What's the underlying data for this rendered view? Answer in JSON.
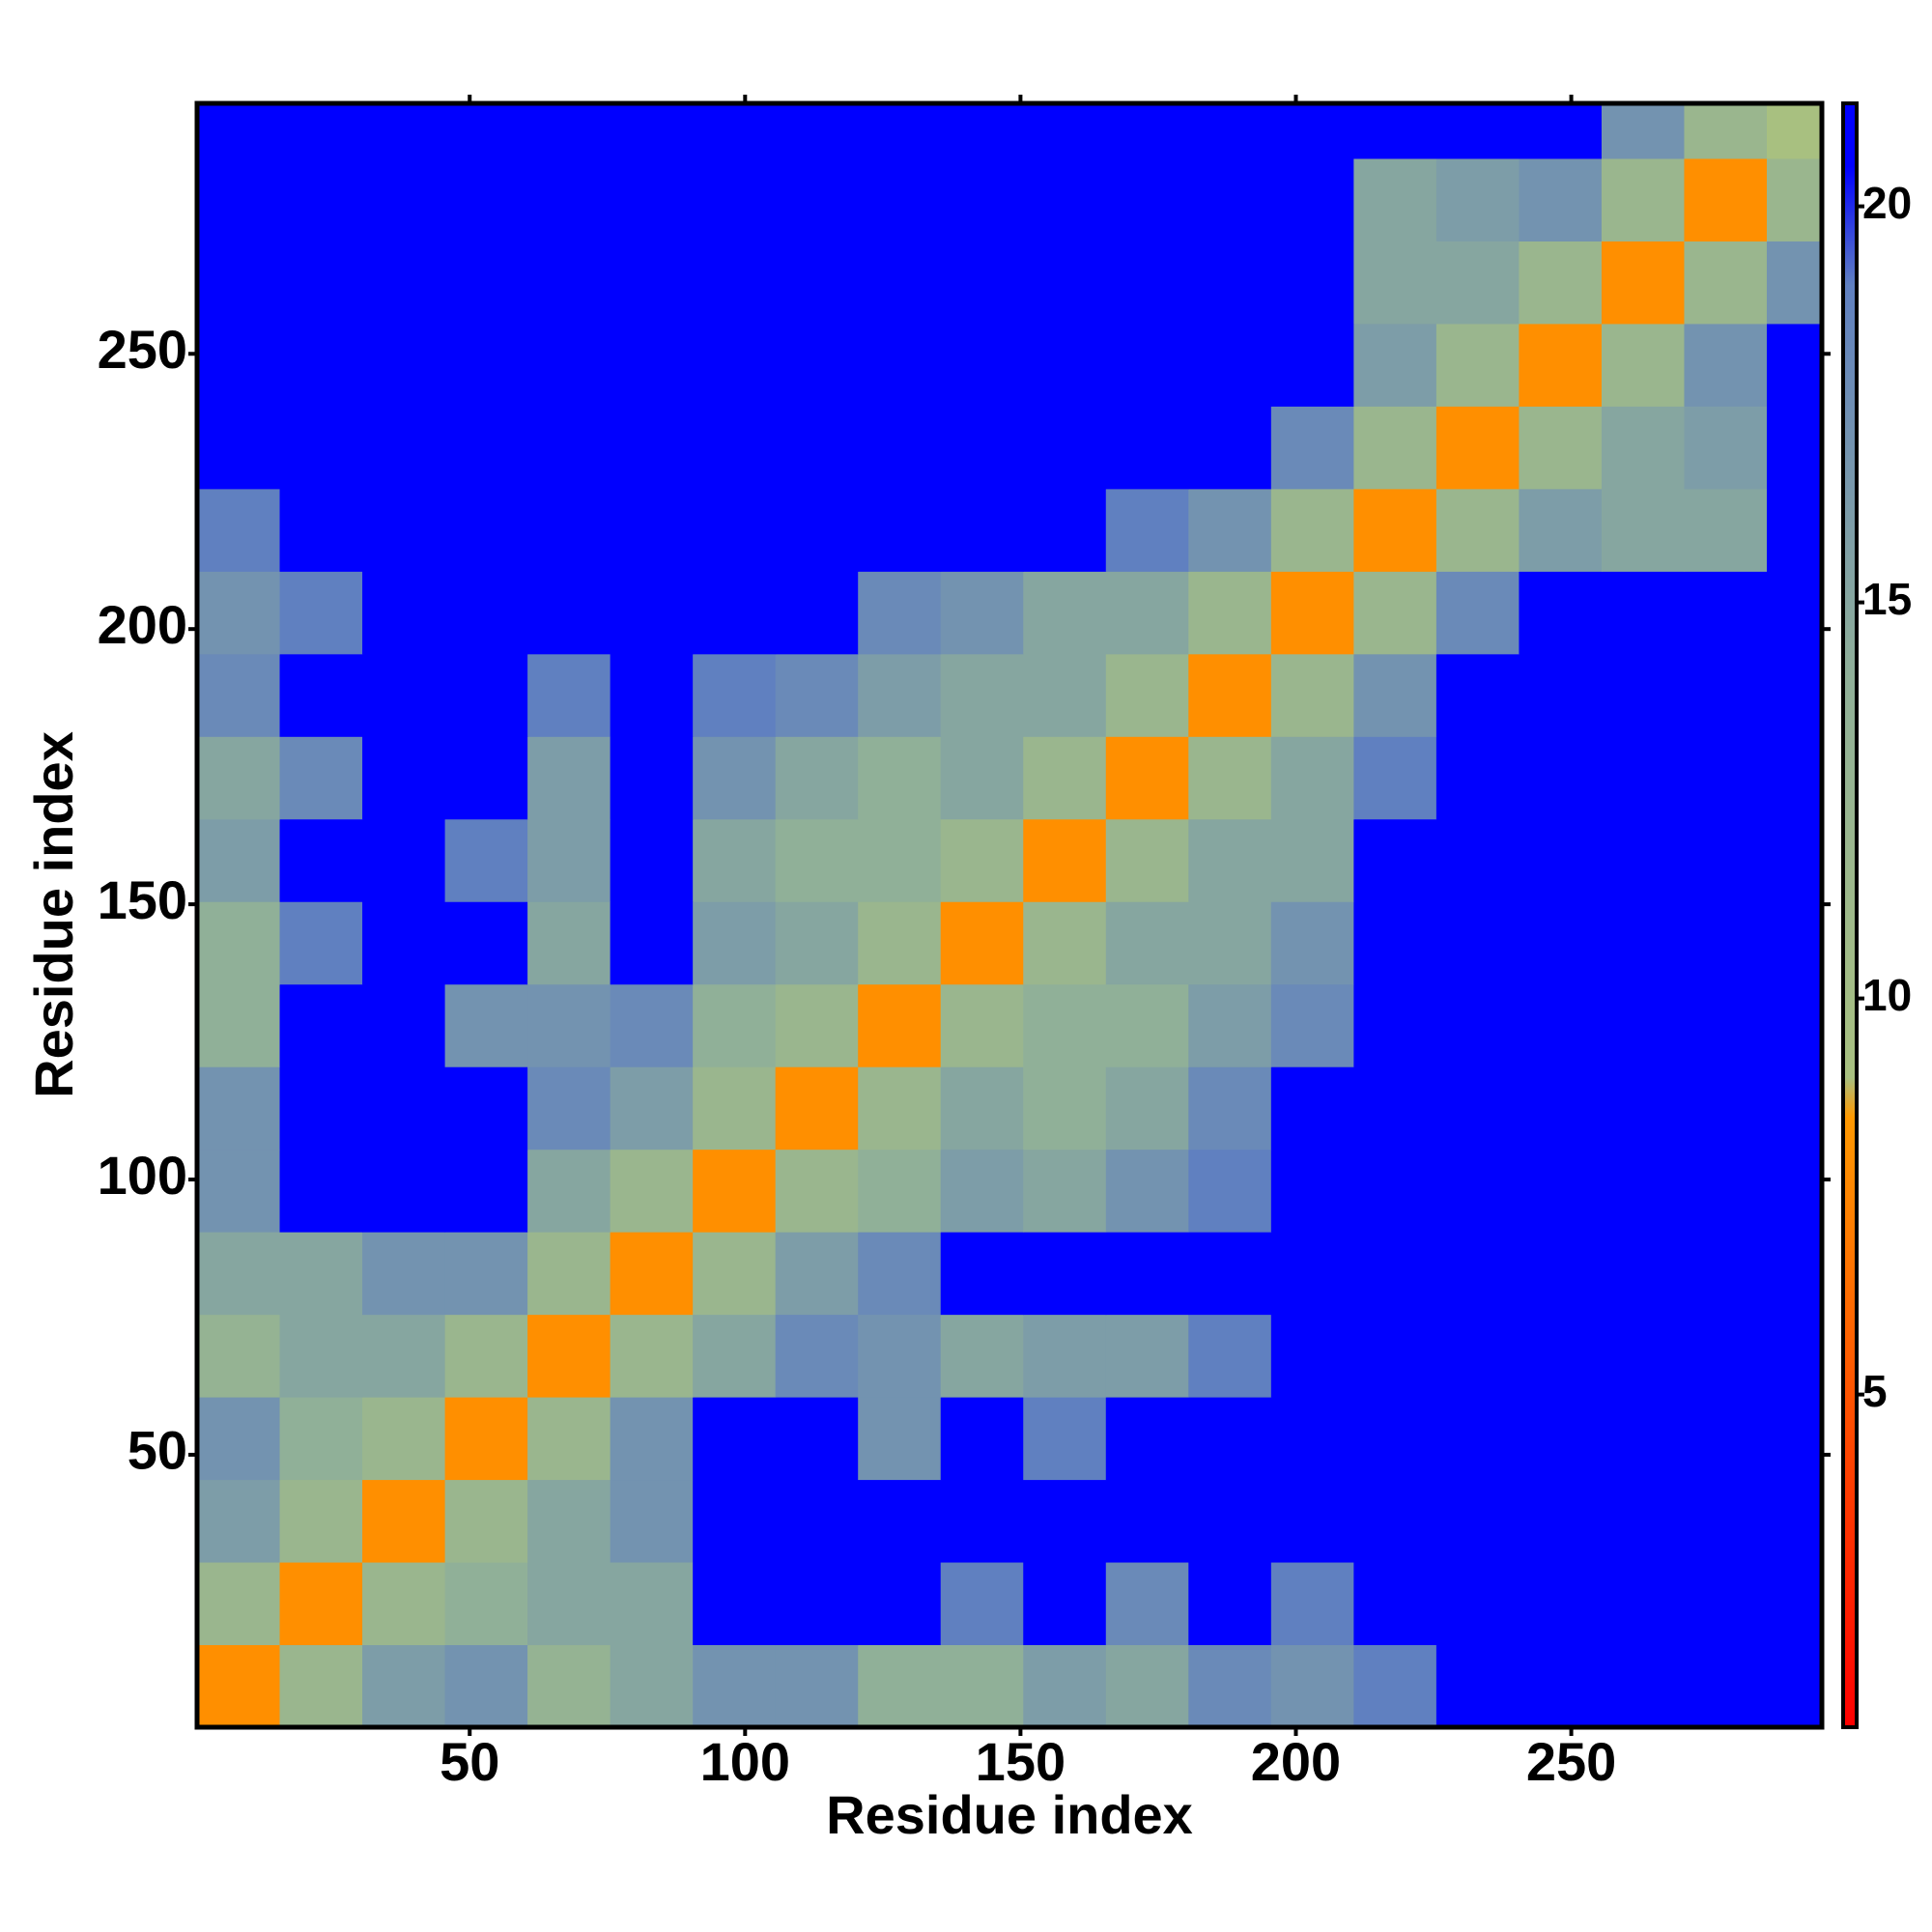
{
  "chart_data": {
    "type": "heatmap",
    "xlabel": "Residue index",
    "ylabel": "Residue index",
    "xlim": [
      0.5,
      295.5
    ],
    "ylim": [
      0.5,
      295.5
    ],
    "xticks": [
      50,
      100,
      150,
      200,
      250
    ],
    "yticks": [
      50,
      100,
      150,
      200,
      250
    ],
    "xbins": [
      0.5,
      15.5,
      30.5,
      45.5,
      60.5,
      75.5,
      90.5,
      105.5,
      120.5,
      135.5,
      150.5,
      165.5,
      180.5,
      195.5,
      210.5,
      225.5,
      240.5,
      255.5,
      270.5,
      285.5,
      295.5
    ],
    "ybins": [
      0.5,
      15.5,
      30.5,
      45.5,
      60.5,
      75.5,
      90.5,
      105.5,
      120.5,
      135.5,
      150.5,
      165.5,
      180.5,
      195.5,
      210.5,
      225.5,
      240.5,
      255.5,
      270.5,
      285.5,
      295.5
    ],
    "zlim": [
      0.8,
      21.3
    ],
    "zticks": [
      5,
      10,
      15,
      20
    ],
    "colorscale": [
      [
        0.8,
        "#ff0000"
      ],
      [
        8.5,
        "#ff9900"
      ],
      [
        9,
        "#a8c080"
      ],
      [
        14,
        "#90b098"
      ],
      [
        19,
        "#6080c0"
      ],
      [
        20.5,
        "#0000ff"
      ],
      [
        21.3,
        "#0000ff"
      ]
    ],
    "z": [
      [
        8,
        12,
        16,
        17,
        13,
        15,
        17,
        17,
        14,
        14,
        16,
        15,
        18,
        17,
        19,
        21,
        21,
        21,
        21,
        21
      ],
      [
        12,
        8,
        12,
        14,
        15,
        15,
        21,
        21,
        21,
        19,
        21,
        18,
        21,
        19,
        21,
        21,
        21,
        21,
        21,
        21
      ],
      [
        16,
        12,
        8,
        12,
        15,
        17,
        21,
        21,
        21,
        21,
        21,
        21,
        21,
        21,
        21,
        21,
        21,
        21,
        21,
        21
      ],
      [
        17,
        14,
        12,
        8,
        12,
        17,
        21,
        21,
        17,
        21,
        19,
        21,
        21,
        21,
        21,
        21,
        21,
        21,
        21,
        21
      ],
      [
        13,
        15,
        15,
        12,
        8,
        12,
        15,
        18,
        17,
        15,
        16,
        16,
        19,
        21,
        21,
        21,
        21,
        21,
        21,
        21
      ],
      [
        15,
        15,
        17,
        17,
        12,
        8,
        12,
        16,
        18,
        21,
        21,
        21,
        21,
        21,
        21,
        21,
        21,
        21,
        21,
        21
      ],
      [
        17,
        21,
        21,
        21,
        15,
        12,
        8,
        12,
        14,
        16,
        15,
        17,
        19,
        21,
        21,
        21,
        21,
        21,
        21,
        21
      ],
      [
        17,
        21,
        21,
        21,
        18,
        16,
        12,
        8,
        12,
        15,
        14,
        15,
        18,
        21,
        21,
        21,
        21,
        21,
        21,
        21
      ],
      [
        14,
        21,
        21,
        17,
        17,
        18,
        14,
        12,
        8,
        12,
        14,
        14,
        16,
        18,
        21,
        21,
        21,
        21,
        21,
        21
      ],
      [
        14,
        19,
        21,
        21,
        15,
        21,
        16,
        15,
        12,
        8,
        12,
        15,
        15,
        17,
        21,
        21,
        21,
        21,
        21,
        21
      ],
      [
        16,
        21,
        21,
        19,
        16,
        21,
        15,
        14,
        14,
        12,
        8,
        12,
        15,
        15,
        21,
        21,
        21,
        21,
        21,
        21
      ],
      [
        15,
        18,
        21,
        21,
        16,
        21,
        17,
        15,
        14,
        15,
        12,
        8,
        12,
        15,
        19,
        21,
        21,
        21,
        21,
        21
      ],
      [
        18,
        21,
        21,
        21,
        19,
        21,
        19,
        18,
        16,
        15,
        15,
        12,
        8,
        12,
        17,
        21,
        21,
        21,
        21,
        21
      ],
      [
        17,
        19,
        21,
        21,
        21,
        21,
        21,
        21,
        18,
        17,
        15,
        15,
        12,
        8,
        12,
        18,
        21,
        21,
        21,
        21
      ],
      [
        19,
        21,
        21,
        21,
        21,
        21,
        21,
        21,
        21,
        21,
        21,
        19,
        17,
        12,
        8,
        12,
        16,
        15,
        15,
        21
      ],
      [
        21,
        21,
        21,
        21,
        21,
        21,
        21,
        21,
        21,
        21,
        21,
        21,
        21,
        18,
        12,
        8,
        12,
        15,
        16,
        21
      ],
      [
        21,
        21,
        21,
        21,
        21,
        21,
        21,
        21,
        21,
        21,
        21,
        21,
        21,
        21,
        16,
        12,
        8,
        12,
        17,
        21
      ],
      [
        21,
        21,
        21,
        21,
        21,
        21,
        21,
        21,
        21,
        21,
        21,
        21,
        21,
        21,
        15,
        15,
        12,
        8,
        12,
        17
      ],
      [
        21,
        21,
        21,
        21,
        21,
        21,
        21,
        21,
        21,
        21,
        21,
        21,
        21,
        21,
        15,
        16,
        17,
        12,
        8,
        12
      ],
      [
        21,
        21,
        21,
        21,
        21,
        21,
        21,
        21,
        21,
        21,
        21,
        21,
        21,
        21,
        21,
        21,
        21,
        17,
        12,
        9
      ]
    ]
  }
}
